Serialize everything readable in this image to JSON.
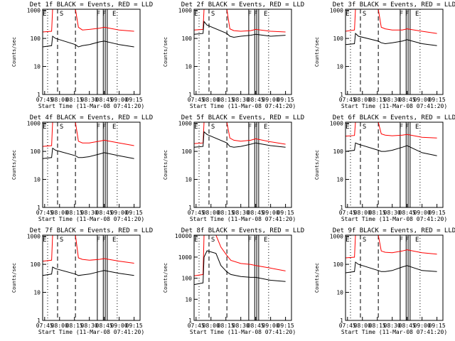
{
  "chart_data": [
    {
      "type": "line",
      "title": "Det 1f BLACK = Events, RED = LLD",
      "ylabel": "Counts/sec",
      "xlabel": "Start Time (11-Mar-08 07:41:20)",
      "x_ticks": [
        "07:45",
        "08:00",
        "08:15",
        "08:30",
        "08:45",
        "09:00",
        "09:15"
      ],
      "y_ticks": [
        "1",
        "10",
        "100",
        "1000"
      ],
      "ylim": [
        1,
        1100
      ],
      "yscale": "log",
      "flags": [
        "E",
        "S",
        "F",
        "F",
        "E"
      ],
      "series": [
        {
          "name": "RED = LLD",
          "color": "#ff0000",
          "x": [
            "07:43",
            "07:52",
            "07:53",
            "07:56",
            "08:16",
            "08:19",
            "08:23",
            "08:30",
            "08:40",
            "08:45",
            "09:00",
            "09:15"
          ],
          "y": [
            170,
            180,
            1100,
            1100,
            1100,
            250,
            200,
            210,
            230,
            250,
            200,
            180
          ]
        },
        {
          "name": "BLACK = Events",
          "color": "#000000",
          "x": [
            "07:43",
            "07:52",
            "07:53",
            "07:56",
            "08:16",
            "08:19",
            "08:23",
            "08:30",
            "08:40",
            "08:45",
            "09:00",
            "09:15"
          ],
          "y": [
            50,
            55,
            120,
            100,
            60,
            50,
            55,
            60,
            75,
            80,
            60,
            50
          ]
        }
      ]
    },
    {
      "type": "line",
      "title": "Det 2f BLACK = Events, RED = LLD",
      "ylabel": "Counts/sec",
      "xlabel": "Start Time (11-Mar-08 07:41:20)",
      "x_ticks": [
        "07:45",
        "08:00",
        "08:15",
        "08:30",
        "08:45",
        "09:00",
        "09:15"
      ],
      "y_ticks": [
        "1",
        "10",
        "100",
        "1000"
      ],
      "ylim": [
        1,
        1100
      ],
      "yscale": "log",
      "flags": [
        "E",
        "S",
        "F",
        "F",
        "E"
      ],
      "series": [
        {
          "name": "RED = LLD",
          "color": "#ff0000",
          "x": [
            "07:43",
            "07:52",
            "07:53",
            "07:56",
            "08:16",
            "08:19",
            "08:23",
            "08:30",
            "08:40",
            "08:45",
            "09:00",
            "09:15"
          ],
          "y": [
            200,
            210,
            1100,
            1100,
            1100,
            220,
            190,
            180,
            190,
            210,
            180,
            170
          ]
        },
        {
          "name": "BLACK = Events",
          "color": "#000000",
          "x": [
            "07:43",
            "07:52",
            "07:53",
            "07:56",
            "08:16",
            "08:19",
            "08:23",
            "08:30",
            "08:40",
            "08:45",
            "09:00",
            "09:15"
          ],
          "y": [
            140,
            150,
            400,
            300,
            150,
            120,
            110,
            120,
            130,
            140,
            120,
            130
          ]
        }
      ]
    },
    {
      "type": "line",
      "title": "Det 3f BLACK = Events, RED = LLD",
      "ylabel": "Counts/sec",
      "xlabel": "Start Time (11-Mar-08 07:41:20)",
      "x_ticks": [
        "07:45",
        "08:00",
        "08:15",
        "08:30",
        "08:45",
        "09:00",
        "09:15"
      ],
      "y_ticks": [
        "1",
        "10",
        "100",
        "1000"
      ],
      "ylim": [
        1,
        1100
      ],
      "yscale": "log",
      "flags": [
        "E",
        "S",
        "F",
        "F",
        "E"
      ],
      "series": [
        {
          "name": "RED = LLD",
          "color": "#ff0000",
          "x": [
            "07:43",
            "07:52",
            "07:53",
            "07:56",
            "08:16",
            "08:19",
            "08:23",
            "08:30",
            "08:40",
            "08:45",
            "09:00",
            "09:15"
          ],
          "y": [
            180,
            200,
            1100,
            1100,
            1100,
            250,
            220,
            200,
            200,
            220,
            180,
            150
          ]
        },
        {
          "name": "BLACK = Events",
          "color": "#000000",
          "x": [
            "07:43",
            "07:52",
            "07:53",
            "07:56",
            "08:16",
            "08:19",
            "08:23",
            "08:30",
            "08:40",
            "08:45",
            "09:00",
            "09:15"
          ],
          "y": [
            60,
            65,
            150,
            120,
            80,
            70,
            65,
            70,
            80,
            90,
            65,
            55
          ]
        }
      ]
    },
    {
      "type": "line",
      "title": "Det 4f BLACK = Events, RED = LLD",
      "ylabel": "Counts/sec",
      "xlabel": "Start Time (11-Mar-08 07:41:20)",
      "x_ticks": [
        "07:45",
        "08:00",
        "08:15",
        "08:30",
        "08:45",
        "09:00",
        "09:15"
      ],
      "y_ticks": [
        "1",
        "10",
        "100",
        "1000"
      ],
      "ylim": [
        1,
        1100
      ],
      "yscale": "log",
      "flags": [
        "E",
        "S",
        "F",
        "F",
        "E"
      ],
      "series": [
        {
          "name": "RED = LLD",
          "color": "#ff0000",
          "x": [
            "07:43",
            "07:52",
            "07:53",
            "07:56",
            "08:16",
            "08:19",
            "08:23",
            "08:30",
            "08:40",
            "08:45",
            "09:00",
            "09:15"
          ],
          "y": [
            150,
            160,
            1100,
            1100,
            1100,
            230,
            200,
            200,
            230,
            250,
            200,
            160
          ]
        },
        {
          "name": "BLACK = Events",
          "color": "#000000",
          "x": [
            "07:43",
            "07:52",
            "07:53",
            "07:56",
            "08:16",
            "08:19",
            "08:23",
            "08:30",
            "08:40",
            "08:45",
            "09:00",
            "09:15"
          ],
          "y": [
            55,
            60,
            130,
            110,
            70,
            60,
            60,
            65,
            80,
            90,
            70,
            55
          ]
        }
      ]
    },
    {
      "type": "line",
      "title": "Det 5f BLACK = Events, RED = LLD",
      "ylabel": "Counts/sec",
      "xlabel": "Start Time (11-Mar-08 07:41:20)",
      "x_ticks": [
        "07:45",
        "08:00",
        "08:15",
        "08:30",
        "08:45",
        "09:00",
        "09:15"
      ],
      "y_ticks": [
        "1",
        "10",
        "100",
        "1000"
      ],
      "ylim": [
        1,
        1100
      ],
      "yscale": "log",
      "flags": [
        "E",
        "S",
        "F",
        "F",
        "E"
      ],
      "series": [
        {
          "name": "RED = LLD",
          "color": "#ff0000",
          "x": [
            "07:43",
            "07:52",
            "07:53",
            "07:56",
            "08:16",
            "08:19",
            "08:23",
            "08:30",
            "08:40",
            "08:45",
            "09:00",
            "09:15"
          ],
          "y": [
            190,
            200,
            1100,
            1100,
            1100,
            300,
            250,
            230,
            250,
            280,
            220,
            180
          ]
        },
        {
          "name": "BLACK = Events",
          "color": "#000000",
          "x": [
            "07:43",
            "07:52",
            "07:53",
            "07:56",
            "08:16",
            "08:19",
            "08:23",
            "08:30",
            "08:40",
            "08:45",
            "09:00",
            "09:15"
          ],
          "y": [
            140,
            150,
            500,
            400,
            200,
            150,
            140,
            150,
            180,
            200,
            160,
            140
          ]
        }
      ]
    },
    {
      "type": "line",
      "title": "Det 6f BLACK = Events, RED = LLD",
      "ylabel": "Counts/sec",
      "xlabel": "Start Time (11-Mar-08 07:41:20)",
      "x_ticks": [
        "07:45",
        "08:00",
        "08:15",
        "08:30",
        "08:45",
        "09:00",
        "09:15"
      ],
      "y_ticks": [
        "1",
        "10",
        "100",
        "1000"
      ],
      "ylim": [
        1,
        1100
      ],
      "yscale": "log",
      "flags": [
        "E",
        "S",
        "F",
        "F",
        "E"
      ],
      "series": [
        {
          "name": "RED = LLD",
          "color": "#ff0000",
          "x": [
            "07:43",
            "07:52",
            "07:53",
            "07:56",
            "08:16",
            "08:19",
            "08:23",
            "08:30",
            "08:40",
            "08:45",
            "09:00",
            "09:15"
          ],
          "y": [
            350,
            370,
            1100,
            1100,
            1100,
            420,
            380,
            360,
            380,
            400,
            320,
            300
          ]
        },
        {
          "name": "BLACK = Events",
          "color": "#000000",
          "x": [
            "07:43",
            "07:52",
            "07:53",
            "07:56",
            "08:16",
            "08:19",
            "08:23",
            "08:30",
            "08:40",
            "08:45",
            "09:00",
            "09:15"
          ],
          "y": [
            100,
            110,
            200,
            180,
            110,
            100,
            100,
            110,
            140,
            160,
            90,
            70
          ]
        }
      ]
    },
    {
      "type": "line",
      "title": "Det 7f BLACK = Events, RED = LLD",
      "ylabel": "Counts/sec",
      "xlabel": "Start Time (11-Mar-08 07:41:20)",
      "x_ticks": [
        "07:45",
        "08:00",
        "08:15",
        "08:30",
        "08:45",
        "09:00",
        "09:15"
      ],
      "y_ticks": [
        "1",
        "10",
        "100",
        "1000"
      ],
      "ylim": [
        1,
        1100
      ],
      "yscale": "log",
      "flags": [
        "E",
        "S",
        "F",
        "F",
        "E"
      ],
      "series": [
        {
          "name": "RED = LLD",
          "color": "#ff0000",
          "x": [
            "07:43",
            "07:52",
            "07:53",
            "07:56",
            "08:16",
            "08:19",
            "08:23",
            "08:30",
            "08:40",
            "08:45",
            "09:00",
            "09:15"
          ],
          "y": [
            130,
            140,
            1100,
            1100,
            1100,
            170,
            150,
            140,
            150,
            160,
            130,
            110
          ]
        },
        {
          "name": "BLACK = Events",
          "color": "#000000",
          "x": [
            "07:43",
            "07:52",
            "07:53",
            "07:56",
            "08:16",
            "08:19",
            "08:23",
            "08:30",
            "08:40",
            "08:45",
            "09:00",
            "09:15"
          ],
          "y": [
            40,
            45,
            80,
            70,
            45,
            40,
            42,
            45,
            55,
            60,
            48,
            40
          ]
        }
      ]
    },
    {
      "type": "line",
      "title": "Det 8f BLACK = Events, RED = LLD",
      "ylabel": "Counts/sec",
      "xlabel": "Start Time (11-Mar-08 07:41:20)",
      "x_ticks": [
        "07:45",
        "08:00",
        "08:15",
        "08:30",
        "08:45",
        "09:00",
        "09:15"
      ],
      "y_ticks": [
        "1",
        "10",
        "100",
        "1000",
        "10000"
      ],
      "ylim": [
        1,
        11000
      ],
      "yscale": "log",
      "flags": [
        "E",
        "S",
        "F",
        "F",
        "E"
      ],
      "series": [
        {
          "name": "RED = LLD",
          "color": "#ff0000",
          "x": [
            "07:43",
            "07:52",
            "07:53",
            "07:56",
            "08:05",
            "08:10",
            "08:16",
            "08:20",
            "08:30",
            "08:40",
            "08:45",
            "09:00",
            "09:15"
          ],
          "y": [
            130,
            150,
            11000,
            11000,
            11000,
            3000,
            1200,
            700,
            500,
            450,
            400,
            300,
            220
          ]
        },
        {
          "name": "BLACK = Events",
          "color": "#000000",
          "x": [
            "07:43",
            "07:52",
            "07:53",
            "07:56",
            "08:05",
            "08:10",
            "08:16",
            "08:20",
            "08:30",
            "08:40",
            "08:45",
            "09:00",
            "09:15"
          ],
          "y": [
            50,
            60,
            1000,
            2000,
            1500,
            400,
            200,
            150,
            120,
            110,
            110,
            80,
            70
          ]
        }
      ]
    },
    {
      "type": "line",
      "title": "Det 9f BLACK = Events, RED = LLD",
      "ylabel": "Counts/sec",
      "xlabel": "Start Time (11-Mar-08 07:41:20)",
      "x_ticks": [
        "07:45",
        "08:00",
        "08:15",
        "08:30",
        "08:45",
        "09:00",
        "09:15"
      ],
      "y_ticks": [
        "1",
        "10",
        "100",
        "1000"
      ],
      "ylim": [
        1,
        1100
      ],
      "yscale": "log",
      "flags": [
        "E",
        "S",
        "F",
        "F",
        "E"
      ],
      "series": [
        {
          "name": "RED = LLD",
          "color": "#ff0000",
          "x": [
            "07:43",
            "07:52",
            "07:53",
            "07:56",
            "08:16",
            "08:19",
            "08:23",
            "08:30",
            "08:40",
            "08:45",
            "09:00",
            "09:15"
          ],
          "y": [
            170,
            180,
            1100,
            1100,
            1100,
            300,
            270,
            260,
            300,
            330,
            260,
            230
          ]
        },
        {
          "name": "BLACK = Events",
          "color": "#000000",
          "x": [
            "07:43",
            "07:52",
            "07:53",
            "07:56",
            "08:16",
            "08:19",
            "08:23",
            "08:30",
            "08:40",
            "08:45",
            "09:00",
            "09:15"
          ],
          "y": [
            50,
            55,
            120,
            100,
            60,
            55,
            55,
            60,
            80,
            90,
            60,
            55
          ]
        }
      ]
    }
  ]
}
